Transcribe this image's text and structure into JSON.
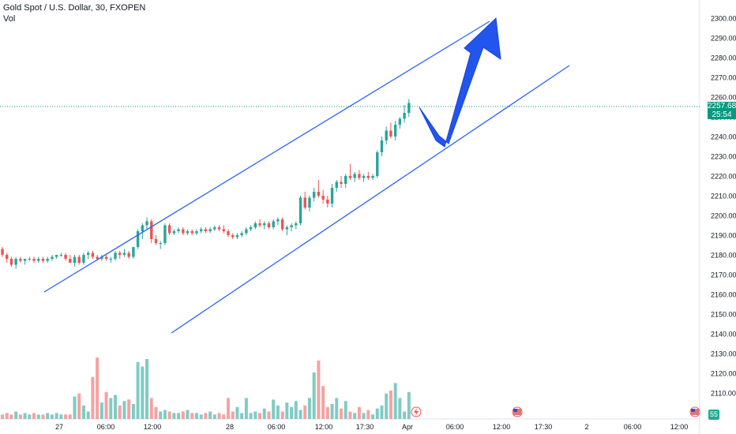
{
  "legend": {
    "symbol": "Gold Spot / U.S. Dollar, 30, FXOPEN",
    "volume_label": "Vol"
  },
  "price_axis": {
    "labels": [
      "2300.00",
      "2290.00",
      "2280.00",
      "2270.00",
      "2260.00",
      "2250.00",
      "2240.00",
      "2230.00",
      "2220.00",
      "2210.00",
      "2200.00",
      "2190.00",
      "2180.00",
      "2170.00",
      "2160.00",
      "2150.00",
      "2140.00",
      "2130.00",
      "2120.00",
      "2110.00"
    ],
    "last_price": "2257.68",
    "countdown": "25:54",
    "volume_badge": "55"
  },
  "time_axis": {
    "labels": [
      "27",
      "06:00",
      "12:00",
      "28",
      "06:00",
      "12:00",
      "17:30",
      "Apr",
      "06:00",
      "12:00",
      "17:30",
      "2",
      "06:00",
      "12:00"
    ]
  },
  "colors": {
    "up": "#26a69a",
    "down": "#ef5350",
    "up_vol": "#80cbc4",
    "down_vol": "#f7a1a1",
    "channel": "#2962ff",
    "arrow": "#2255ee",
    "price_line": "#089981"
  },
  "events": [
    {
      "icon": "dividend-lightning-icon"
    },
    {
      "icon": "us-flag-icon"
    },
    {
      "icon": "us-flag-icon"
    },
    {
      "icon": "us-flag-icon"
    }
  ],
  "chart_data": {
    "type": "candlestick",
    "ylim": [
      2105,
      2305
    ],
    "candles": [
      [
        2183,
        2184,
        2179,
        2180
      ],
      [
        2180,
        2181,
        2176,
        2178
      ],
      [
        2178,
        2179,
        2174,
        2175
      ],
      [
        2175,
        2179,
        2173,
        2178
      ],
      [
        2178,
        2179,
        2176,
        2177
      ],
      [
        2177,
        2178,
        2175,
        2178
      ],
      [
        2178,
        2179,
        2177,
        2178
      ],
      [
        2178,
        2179,
        2176,
        2177
      ],
      [
        2177,
        2179,
        2176,
        2178
      ],
      [
        2178,
        2179,
        2176,
        2177
      ],
      [
        2177,
        2179,
        2176,
        2178
      ],
      [
        2178,
        2180,
        2177,
        2179
      ],
      [
        2179,
        2180,
        2178,
        2180
      ],
      [
        2180,
        2181,
        2179,
        2180
      ],
      [
        2180,
        2181,
        2177,
        2178
      ],
      [
        2178,
        2180,
        2176,
        2176
      ],
      [
        2176,
        2180,
        2174,
        2179
      ],
      [
        2179,
        2180,
        2175,
        2176
      ],
      [
        2176,
        2181,
        2175,
        2180
      ],
      [
        2180,
        2182,
        2178,
        2181
      ],
      [
        2181,
        2182,
        2178,
        2179
      ],
      [
        2179,
        2180,
        2177,
        2178
      ],
      [
        2178,
        2180,
        2177,
        2179
      ],
      [
        2179,
        2180,
        2177,
        2178
      ],
      [
        2178,
        2179,
        2176,
        2178
      ],
      [
        2178,
        2182,
        2177,
        2181
      ],
      [
        2181,
        2182,
        2178,
        2180
      ],
      [
        2180,
        2183,
        2179,
        2181
      ],
      [
        2181,
        2182,
        2178,
        2179
      ],
      [
        2179,
        2184,
        2178,
        2184
      ],
      [
        2184,
        2193,
        2183,
        2192
      ],
      [
        2192,
        2196,
        2188,
        2195
      ],
      [
        2195,
        2199,
        2193,
        2197
      ],
      [
        2197,
        2198,
        2186,
        2188
      ],
      [
        2188,
        2190,
        2185,
        2186
      ],
      [
        2186,
        2187,
        2183,
        2186
      ],
      [
        2186,
        2196,
        2185,
        2195
      ],
      [
        2195,
        2196,
        2190,
        2191
      ],
      [
        2191,
        2193,
        2190,
        2192
      ],
      [
        2192,
        2194,
        2191,
        2193
      ],
      [
        2193,
        2194,
        2190,
        2191
      ],
      [
        2191,
        2193,
        2190,
        2192
      ],
      [
        2192,
        2193,
        2190,
        2191
      ],
      [
        2191,
        2193,
        2190,
        2192
      ],
      [
        2192,
        2194,
        2191,
        2193
      ],
      [
        2193,
        2194,
        2191,
        2192
      ],
      [
        2192,
        2194,
        2191,
        2193
      ],
      [
        2193,
        2195,
        2192,
        2194
      ],
      [
        2194,
        2195,
        2192,
        2193
      ],
      [
        2193,
        2195,
        2191,
        2192
      ],
      [
        2192,
        2193,
        2189,
        2190
      ],
      [
        2190,
        2191,
        2188,
        2189
      ],
      [
        2189,
        2191,
        2188,
        2190
      ],
      [
        2190,
        2192,
        2189,
        2191
      ],
      [
        2191,
        2194,
        2190,
        2193
      ],
      [
        2193,
        2195,
        2192,
        2194
      ],
      [
        2194,
        2197,
        2193,
        2196
      ],
      [
        2196,
        2198,
        2194,
        2195
      ],
      [
        2195,
        2197,
        2193,
        2196
      ],
      [
        2196,
        2197,
        2193,
        2194
      ],
      [
        2194,
        2198,
        2193,
        2197
      ],
      [
        2197,
        2199,
        2195,
        2198
      ],
      [
        2198,
        2199,
        2192,
        2193
      ],
      [
        2193,
        2195,
        2190,
        2194
      ],
      [
        2194,
        2196,
        2192,
        2195
      ],
      [
        2195,
        2197,
        2193,
        2196
      ],
      [
        2196,
        2210,
        2195,
        2209
      ],
      [
        2209,
        2212,
        2203,
        2204
      ],
      [
        2204,
        2210,
        2202,
        2209
      ],
      [
        2209,
        2214,
        2207,
        2212
      ],
      [
        2212,
        2218,
        2209,
        2210
      ],
      [
        2210,
        2213,
        2206,
        2208
      ],
      [
        2208,
        2210,
        2204,
        2206
      ],
      [
        2206,
        2216,
        2204,
        2214
      ],
      [
        2214,
        2218,
        2212,
        2217
      ],
      [
        2217,
        2220,
        2214,
        2216
      ],
      [
        2216,
        2221,
        2214,
        2220
      ],
      [
        2220,
        2226,
        2218,
        2219
      ],
      [
        2219,
        2222,
        2217,
        2221
      ],
      [
        2221,
        2223,
        2218,
        2219
      ],
      [
        2219,
        2221,
        2217,
        2220
      ],
      [
        2220,
        2222,
        2218,
        2219
      ],
      [
        2219,
        2221,
        2218,
        2220
      ],
      [
        2220,
        2233,
        2219,
        2232
      ],
      [
        2232,
        2240,
        2230,
        2238
      ],
      [
        2238,
        2245,
        2236,
        2243
      ],
      [
        2243,
        2247,
        2239,
        2240
      ],
      [
        2240,
        2248,
        2238,
        2246
      ],
      [
        2246,
        2250,
        2244,
        2249
      ],
      [
        2249,
        2256,
        2247,
        2252
      ],
      [
        2252,
        2259,
        2250,
        2257
      ]
    ],
    "volumes": [
      3,
      4,
      3,
      5,
      3,
      4,
      3,
      4,
      3,
      3,
      4,
      3,
      4,
      3,
      3,
      3,
      15,
      17,
      9,
      5,
      28,
      41,
      11,
      18,
      14,
      16,
      9,
      12,
      13,
      10,
      38,
      35,
      40,
      14,
      8,
      5,
      6,
      5,
      4,
      4,
      5,
      6,
      4,
      4,
      3,
      4,
      5,
      3,
      4,
      3,
      14,
      5,
      8,
      4,
      14,
      4,
      5,
      4,
      7,
      5,
      13,
      9,
      5,
      11,
      8,
      12,
      6,
      9,
      14,
      31,
      39,
      22,
      8,
      10,
      14,
      7,
      12,
      5,
      4,
      8,
      4,
      6,
      3,
      7,
      9,
      17,
      19,
      24,
      14,
      5,
      18
    ],
    "volume_up": [
      false,
      false,
      false,
      true,
      false,
      true,
      true,
      false,
      true,
      false,
      true,
      true,
      true,
      true,
      false,
      false,
      true,
      false,
      true,
      true,
      false,
      false,
      true,
      false,
      true,
      true,
      false,
      true,
      false,
      true,
      true,
      true,
      true,
      false,
      false,
      true,
      true,
      false,
      true,
      true,
      false,
      true,
      false,
      true,
      true,
      false,
      true,
      true,
      false,
      false,
      false,
      false,
      true,
      true,
      true,
      true,
      true,
      false,
      true,
      false,
      true,
      true,
      false,
      true,
      true,
      true,
      true,
      false,
      true,
      true,
      false,
      false,
      false,
      true,
      true,
      false,
      true,
      false,
      true,
      false,
      true,
      false,
      true,
      true,
      true,
      true,
      false,
      true,
      true,
      true,
      true
    ]
  }
}
